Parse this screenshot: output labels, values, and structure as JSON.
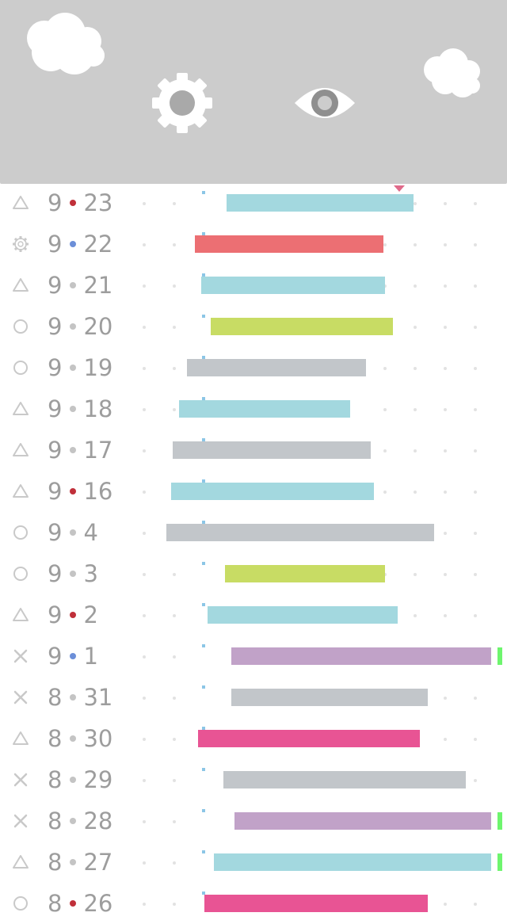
{
  "header": {
    "background": "#cccccc",
    "icons": [
      "cloud-icon",
      "gear-icon",
      "eye-icon",
      "cloud-icon"
    ]
  },
  "colors": {
    "teal": "#a3d8df",
    "red": "#ec6f73",
    "green": "#c8dc64",
    "gray": "#c2c6ca",
    "purple": "#c1a2c8",
    "pink": "#e85494",
    "overflow": "#6ef56e",
    "sep_gray": "#c4c4c4",
    "sep_red": "#c0303a",
    "sep_blue": "#6c8fd8"
  },
  "rows": [
    {
      "icon": "triangle-icon",
      "month": "9",
      "day": "23",
      "sep": "sep_red",
      "bar": {
        "start": 0.447,
        "end": 0.816,
        "color": "teal"
      }
    },
    {
      "icon": "gear-outline-icon",
      "month": "9",
      "day": "22",
      "sep": "sep_blue",
      "bar": {
        "start": 0.384,
        "end": 0.756,
        "color": "red"
      }
    },
    {
      "icon": "triangle-icon",
      "month": "9",
      "day": "21",
      "sep": "sep_gray",
      "bar": {
        "start": 0.397,
        "end": 0.759,
        "color": "teal"
      }
    },
    {
      "icon": "circle-icon",
      "month": "9",
      "day": "20",
      "sep": "sep_gray",
      "bar": {
        "start": 0.416,
        "end": 0.775,
        "color": "green"
      }
    },
    {
      "icon": "circle-icon",
      "month": "9",
      "day": "19",
      "sep": "sep_gray",
      "bar": {
        "start": 0.369,
        "end": 0.722,
        "color": "gray"
      }
    },
    {
      "icon": "triangle-icon",
      "month": "9",
      "day": "18",
      "sep": "sep_gray",
      "bar": {
        "start": 0.353,
        "end": 0.691,
        "color": "teal"
      }
    },
    {
      "icon": "triangle-icon",
      "month": "9",
      "day": "17",
      "sep": "sep_gray",
      "bar": {
        "start": 0.341,
        "end": 0.731,
        "color": "gray"
      }
    },
    {
      "icon": "triangle-icon",
      "month": "9",
      "day": "16",
      "sep": "sep_red",
      "bar": {
        "start": 0.338,
        "end": 0.738,
        "color": "teal"
      }
    },
    {
      "icon": "circle-icon",
      "month": "9",
      "day": "4",
      "sep": "sep_gray",
      "bar": {
        "start": 0.328,
        "end": 0.856,
        "color": "gray"
      }
    },
    {
      "icon": "circle-icon",
      "month": "9",
      "day": "3",
      "sep": "sep_gray",
      "bar": {
        "start": 0.444,
        "end": 0.759,
        "color": "green"
      }
    },
    {
      "icon": "triangle-icon",
      "month": "9",
      "day": "2",
      "sep": "sep_red",
      "bar": {
        "start": 0.409,
        "end": 0.784,
        "color": "teal"
      }
    },
    {
      "icon": "cross-icon",
      "month": "9",
      "day": "1",
      "sep": "sep_blue",
      "bar": {
        "start": 0.456,
        "end": 0.969,
        "color": "purple"
      },
      "overflow": true
    },
    {
      "icon": "cross-icon",
      "month": "8",
      "day": "31",
      "sep": "sep_gray",
      "bar": {
        "start": 0.456,
        "end": 0.844,
        "color": "gray"
      }
    },
    {
      "icon": "triangle-icon",
      "month": "8",
      "day": "30",
      "sep": "sep_gray",
      "bar": {
        "start": 0.391,
        "end": 0.828,
        "color": "pink"
      }
    },
    {
      "icon": "cross-icon",
      "month": "8",
      "day": "29",
      "sep": "sep_gray",
      "bar": {
        "start": 0.441,
        "end": 0.919,
        "color": "gray"
      }
    },
    {
      "icon": "cross-icon",
      "month": "8",
      "day": "28",
      "sep": "sep_gray",
      "bar": {
        "start": 0.463,
        "end": 0.969,
        "color": "purple"
      },
      "overflow": true
    },
    {
      "icon": "triangle-icon",
      "month": "8",
      "day": "27",
      "sep": "sep_gray",
      "bar": {
        "start": 0.422,
        "end": 0.969,
        "color": "teal"
      },
      "overflow": true
    },
    {
      "icon": "circle-icon",
      "month": "8",
      "day": "26",
      "sep": "sep_red",
      "bar": {
        "start": 0.403,
        "end": 0.844,
        "color": "pink"
      }
    }
  ]
}
